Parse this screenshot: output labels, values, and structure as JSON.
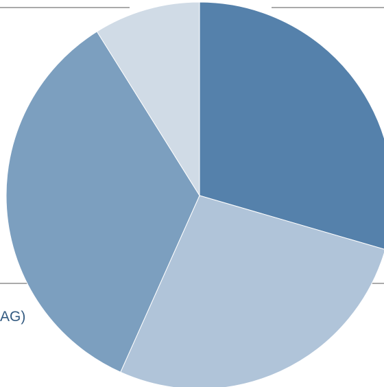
{
  "chart_data": {
    "type": "pie",
    "categories": [
      "",
      "",
      "",
      ""
    ],
    "values": [
      29.5,
      27.2,
      34.4,
      8.9
    ],
    "colors": [
      "#5581ab",
      "#b0c4d9",
      "#7c9fbf",
      "#d0dbe6"
    ],
    "title": "",
    "legend_fragment": "AG)"
  }
}
